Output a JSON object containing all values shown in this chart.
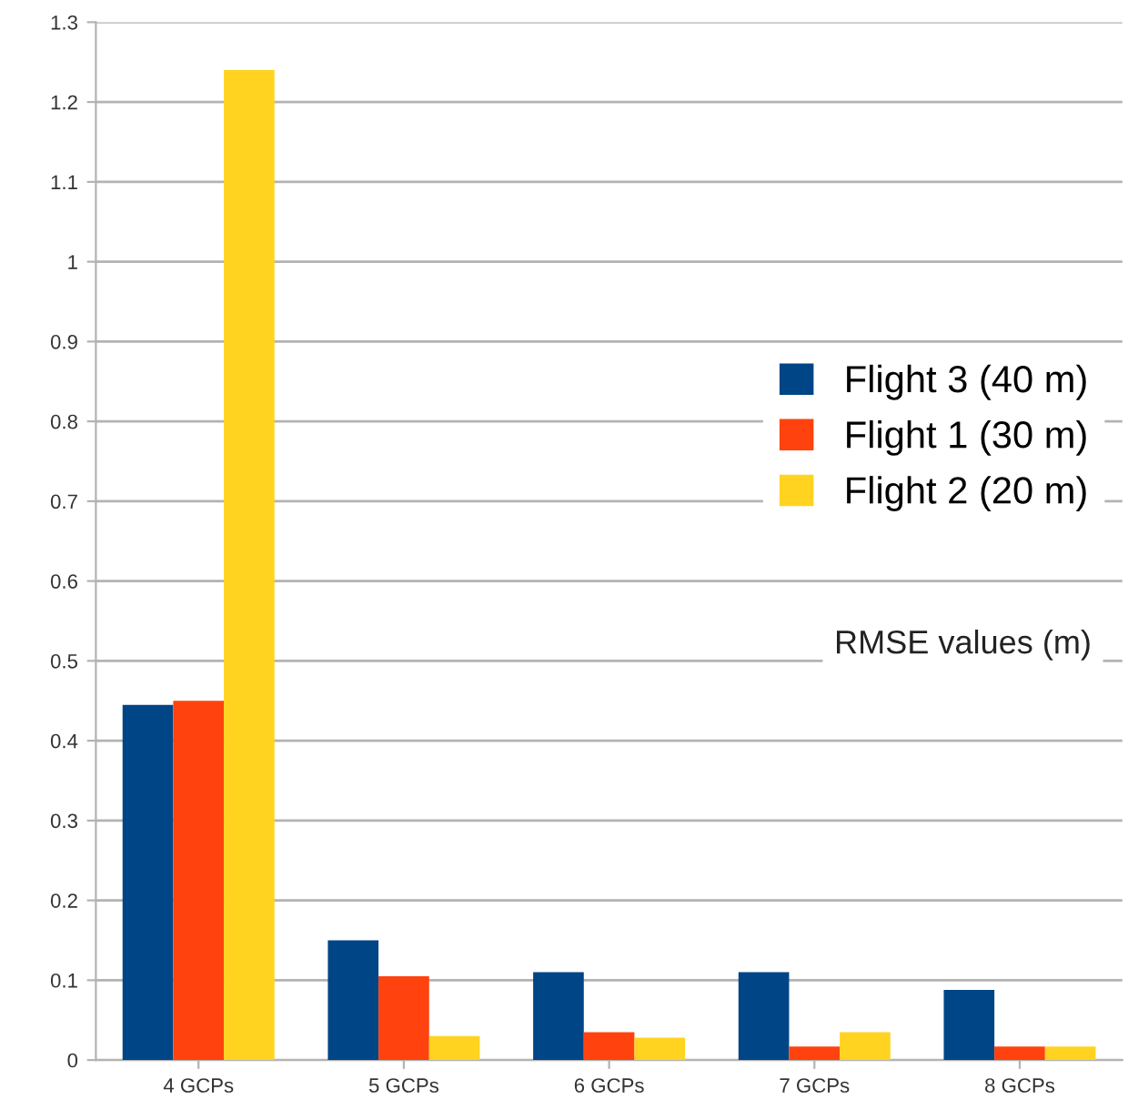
{
  "chart_data": {
    "type": "bar",
    "categories": [
      "4 GCPs",
      "5 GCPs",
      "6 GCPs",
      "7 GCPs",
      "8 GCPs"
    ],
    "series": [
      {
        "name": "Flight 3 (40 m)",
        "color": "#004586",
        "values": [
          0.445,
          0.15,
          0.11,
          0.11,
          0.088
        ]
      },
      {
        "name": "Flight 1 (30 m)",
        "color": "#ff420e",
        "values": [
          0.45,
          0.105,
          0.035,
          0.017,
          0.017
        ]
      },
      {
        "name": "Flight 2 (20 m)",
        "color": "#ffd320",
        "values": [
          1.24,
          0.03,
          0.028,
          0.035,
          0.017
        ]
      }
    ],
    "ylim": [
      0,
      1.3
    ],
    "yticks": [
      0,
      0.1,
      0.2,
      0.3,
      0.4,
      0.5,
      0.6,
      0.7,
      0.8,
      0.9,
      1,
      1.1,
      1.2,
      1.3
    ],
    "grid": "y",
    "legend": "center right",
    "annotations": [
      "RMSE values (m)"
    ]
  }
}
